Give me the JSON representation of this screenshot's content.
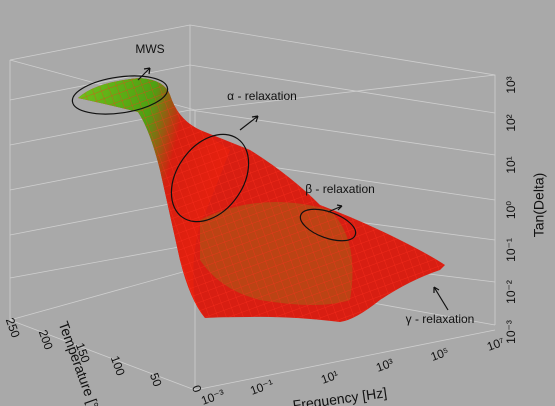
{
  "z_axis": {
    "label": "Tan(Delta)",
    "ticks": [
      "10³",
      "10²",
      "10¹",
      "10⁰",
      "10⁻¹",
      "10⁻²",
      "10⁻³"
    ]
  },
  "x_axis": {
    "label": "Frequency [Hz]",
    "ticks": [
      "10⁻³",
      "10⁻¹",
      "10¹",
      "10³",
      "10⁵",
      "10⁷"
    ]
  },
  "y_axis": {
    "label": "Temperature [°C]",
    "ticks": [
      "250",
      "200",
      "150",
      "100",
      "50",
      "0"
    ]
  },
  "annotations": [
    "MWS",
    "α - relaxation",
    "β - relaxation",
    "γ - relaxation"
  ]
}
